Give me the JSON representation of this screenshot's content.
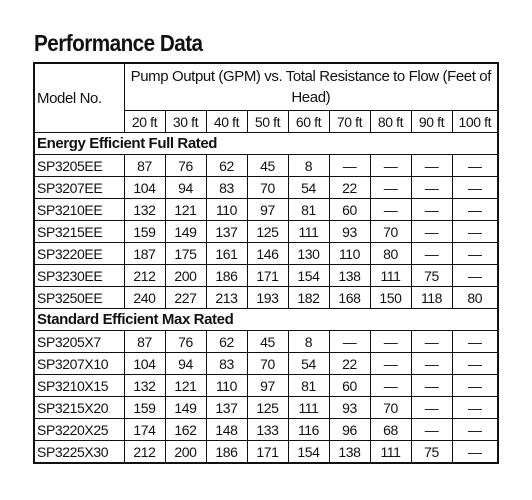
{
  "title": "Performance Data",
  "table": {
    "header": {
      "model": "Model No.",
      "group": "Pump Output (GPM) vs. Total Resistance to Flow (Feet of Head)"
    },
    "columns": [
      "20 ft",
      "30 ft",
      "40 ft",
      "50 ft",
      "60 ft",
      "70 ft",
      "80 ft",
      "90 ft",
      "100 ft"
    ],
    "sections": [
      {
        "title": "Energy Efficient Full Rated",
        "rows": [
          {
            "model": "SP3205EE",
            "values": [
              87,
              76,
              62,
              45,
              8,
              "—",
              "—",
              "—",
              "—"
            ]
          },
          {
            "model": "SP3207EE",
            "values": [
              104,
              94,
              83,
              70,
              54,
              22,
              "—",
              "—",
              "—"
            ]
          },
          {
            "model": "SP3210EE",
            "values": [
              132,
              121,
              110,
              97,
              81,
              60,
              "—",
              "—",
              "—"
            ]
          },
          {
            "model": "SP3215EE",
            "values": [
              159,
              149,
              137,
              125,
              111,
              93,
              70,
              "—",
              "—"
            ]
          },
          {
            "model": "SP3220EE",
            "values": [
              187,
              175,
              161,
              146,
              130,
              110,
              80,
              "—",
              "—"
            ]
          },
          {
            "model": "SP3230EE",
            "values": [
              212,
              200,
              186,
              171,
              154,
              138,
              111,
              75,
              "—"
            ]
          },
          {
            "model": "SP3250EE",
            "values": [
              240,
              227,
              213,
              193,
              182,
              168,
              150,
              118,
              80
            ]
          }
        ]
      },
      {
        "title": "Standard Efficient Max Rated",
        "rows": [
          {
            "model": "SP3205X7",
            "values": [
              87,
              76,
              62,
              45,
              8,
              "—",
              "—",
              "—",
              "—"
            ]
          },
          {
            "model": "SP3207X10",
            "values": [
              104,
              94,
              83,
              70,
              54,
              22,
              "—",
              "—",
              "—"
            ]
          },
          {
            "model": "SP3210X15",
            "values": [
              132,
              121,
              110,
              97,
              81,
              60,
              "—",
              "—",
              "—"
            ]
          },
          {
            "model": "SP3215X20",
            "values": [
              159,
              149,
              137,
              125,
              111,
              93,
              70,
              "—",
              "—"
            ]
          },
          {
            "model": "SP3220X25",
            "values": [
              174,
              162,
              148,
              133,
              116,
              96,
              68,
              "—",
              "—"
            ]
          },
          {
            "model": "SP3225X30",
            "values": [
              212,
              200,
              186,
              171,
              154,
              138,
              111,
              75,
              "—"
            ]
          }
        ]
      }
    ]
  }
}
